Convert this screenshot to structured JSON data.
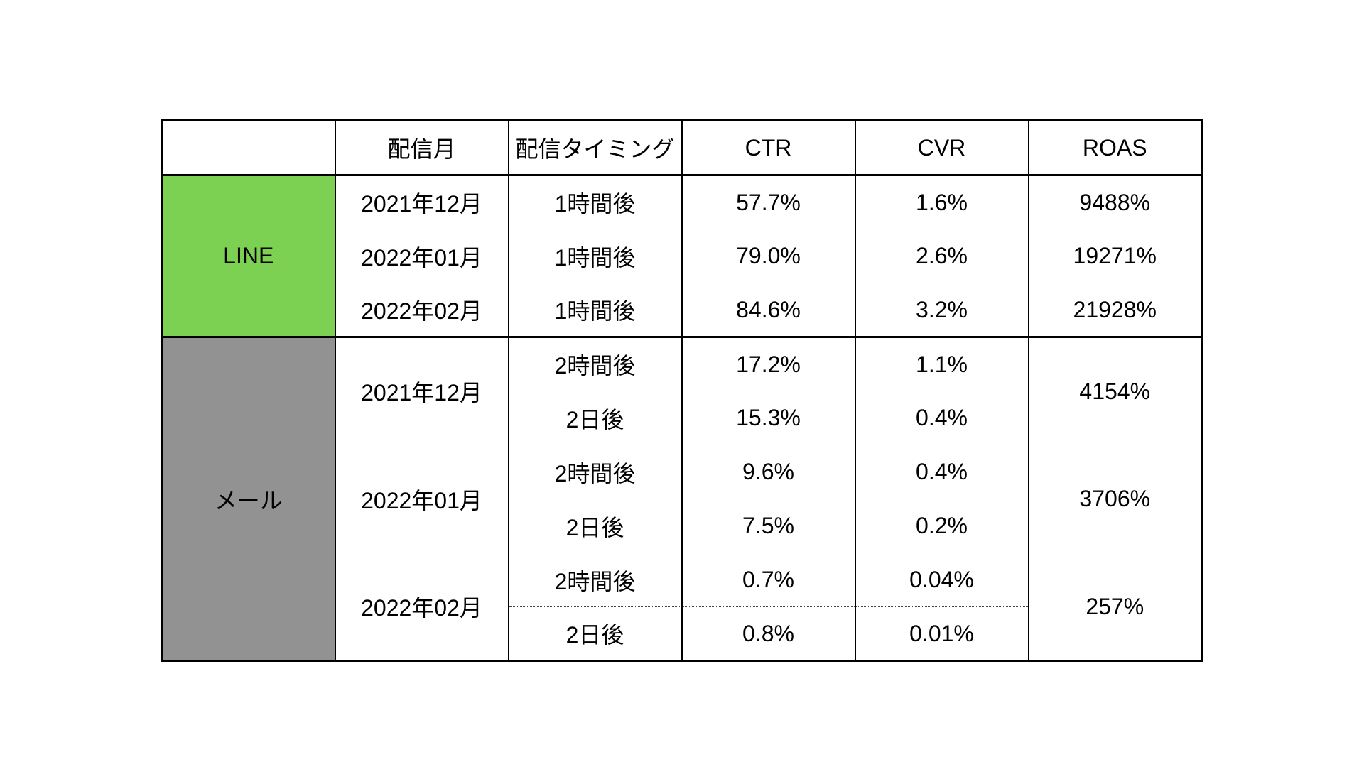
{
  "colors": {
    "line_green": "#7DD152",
    "mail_gray": "#929292",
    "border_black": "#000000",
    "background": "#ffffff",
    "label_text": "#ffffff"
  },
  "header": {
    "channel": "",
    "month": "配信月",
    "timing": "配信タイミング",
    "ctr": "CTR",
    "cvr": "CVR",
    "roas": "ROAS"
  },
  "line": {
    "label": "LINE",
    "rows": [
      {
        "month": "2021年12月",
        "timing": "1時間後",
        "ctr": "57.7%",
        "cvr": "1.6%",
        "roas": "9488%"
      },
      {
        "month": "2022年01月",
        "timing": "1時間後",
        "ctr": "79.0%",
        "cvr": "2.6%",
        "roas": "19271%"
      },
      {
        "month": "2022年02月",
        "timing": "1時間後",
        "ctr": "84.6%",
        "cvr": "3.2%",
        "roas": "21928%"
      }
    ]
  },
  "mail": {
    "label": "メール",
    "groups": [
      {
        "month": "2021年12月",
        "roas": "4154%",
        "rows": [
          {
            "timing": "2時間後",
            "ctr": "17.2%",
            "cvr": "1.1%"
          },
          {
            "timing": "2日後",
            "ctr": "15.3%",
            "cvr": "0.4%"
          }
        ]
      },
      {
        "month": "2022年01月",
        "roas": "3706%",
        "rows": [
          {
            "timing": "2時間後",
            "ctr": "9.6%",
            "cvr": "0.4%"
          },
          {
            "timing": "2日後",
            "ctr": "7.5%",
            "cvr": "0.2%"
          }
        ]
      },
      {
        "month": "2022年02月",
        "roas": "257%",
        "rows": [
          {
            "timing": "2時間後",
            "ctr": "0.7%",
            "cvr": "0.04%"
          },
          {
            "timing": "2日後",
            "ctr": "0.8%",
            "cvr": "0.01%"
          }
        ]
      }
    ]
  },
  "chart_data": {
    "type": "table",
    "columns": [
      "",
      "配信月",
      "配信タイミング",
      "CTR",
      "CVR",
      "ROAS"
    ],
    "rows": [
      [
        "LINE",
        "2021年12月",
        "1時間後",
        "57.7%",
        "1.6%",
        "9488%"
      ],
      [
        "LINE",
        "2022年01月",
        "1時間後",
        "79.0%",
        "2.6%",
        "19271%"
      ],
      [
        "LINE",
        "2022年02月",
        "1時間後",
        "84.6%",
        "3.2%",
        "21928%"
      ],
      [
        "メール",
        "2021年12月",
        "2時間後",
        "17.2%",
        "1.1%",
        "4154%"
      ],
      [
        "メール",
        "2021年12月",
        "2日後",
        "15.3%",
        "0.4%",
        "4154%"
      ],
      [
        "メール",
        "2022年01月",
        "2時間後",
        "9.6%",
        "0.4%",
        "3706%"
      ],
      [
        "メール",
        "2022年01月",
        "2日後",
        "7.5%",
        "0.2%",
        "3706%"
      ],
      [
        "メール",
        "2022年02月",
        "2時間後",
        "0.7%",
        "0.04%",
        "257%"
      ],
      [
        "メール",
        "2022年02月",
        "2日後",
        "0.8%",
        "0.01%",
        "257%"
      ]
    ]
  }
}
